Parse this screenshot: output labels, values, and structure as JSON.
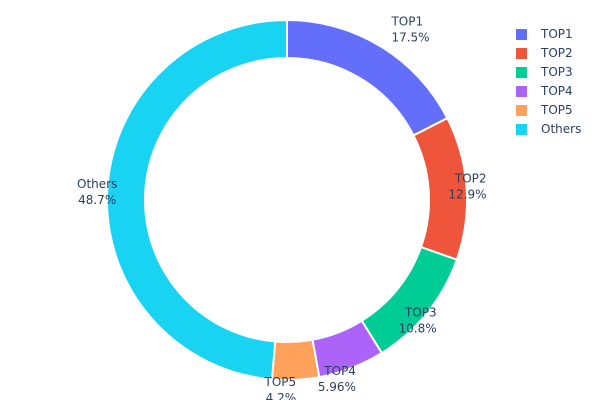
{
  "chart_data": {
    "type": "pie",
    "hole": true,
    "categories": [
      "TOP1",
      "TOP2",
      "TOP3",
      "TOP4",
      "TOP5",
      "Others"
    ],
    "values": [
      17.5,
      12.9,
      10.8,
      5.96,
      4.2,
      48.7
    ],
    "value_labels": [
      "17.5%",
      "12.9%",
      "10.8%",
      "5.96%",
      "4.2%",
      "48.7%"
    ],
    "colors": [
      "#636efa",
      "#EF553B",
      "#00cc96",
      "#ab63fa",
      "#FFA15A",
      "#19d3f3"
    ],
    "legend": {
      "placement": "top-right",
      "entries": [
        "TOP1",
        "TOP2",
        "TOP3",
        "TOP4",
        "TOP5",
        "Others"
      ]
    }
  }
}
